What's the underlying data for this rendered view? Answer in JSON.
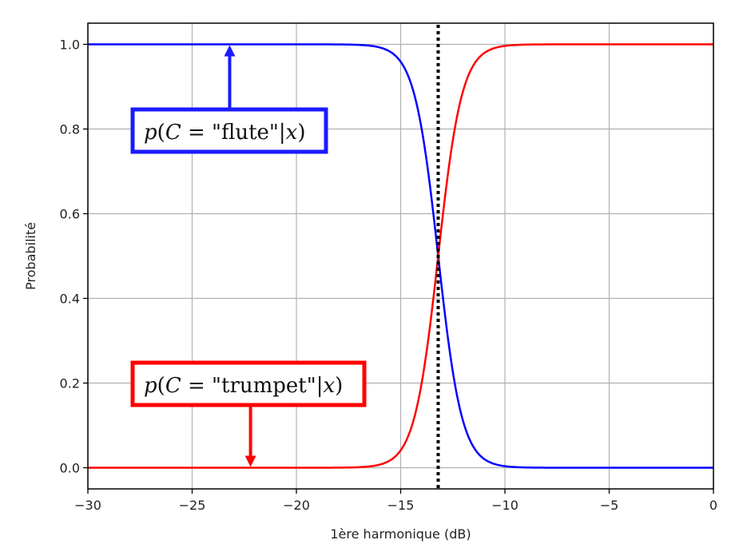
{
  "chart_data": {
    "type": "line",
    "title": "",
    "xlabel": "1ère harmonique (dB)",
    "ylabel": "Probabilité",
    "xlim": [
      -30,
      0
    ],
    "ylim": [
      -0.05,
      1.05
    ],
    "grid": true,
    "x_ticks": [
      -30,
      -25,
      -20,
      -15,
      -10,
      -5,
      0
    ],
    "x_tick_labels": [
      "−30",
      "−25",
      "−20",
      "−15",
      "−10",
      "−5",
      "0"
    ],
    "y_ticks": [
      0.0,
      0.2,
      0.4,
      0.6,
      0.8,
      1.0
    ],
    "y_tick_labels": [
      "0.0",
      "0.2",
      "0.4",
      "0.6",
      "0.8",
      "1.0"
    ],
    "decision_boundary_x": -13.2,
    "sigmoid": {
      "center": -13.2,
      "steepness": 1.75
    },
    "series": [
      {
        "name": "p(C = \"flute\"|x)",
        "color": "#0000ff",
        "shape": "decreasing sigmoid",
        "x": [
          -30,
          -20,
          -17,
          -16,
          -15,
          -14,
          -13.2,
          -12.5,
          -12,
          -11,
          -10,
          -5,
          0
        ],
        "values": [
          1.0,
          1.0,
          0.999,
          0.993,
          0.958,
          0.8,
          0.5,
          0.22,
          0.11,
          0.02,
          0.004,
          0.0,
          0.0
        ]
      },
      {
        "name": "p(C = \"trumpet\"|x)",
        "color": "#ff0000",
        "shape": "increasing sigmoid",
        "x": [
          -30,
          -20,
          -17,
          -16,
          -15,
          -14,
          -13.2,
          -12.5,
          -12,
          -11,
          -10,
          -5,
          0
        ],
        "values": [
          0.0,
          0.0,
          0.001,
          0.007,
          0.042,
          0.2,
          0.5,
          0.78,
          0.89,
          0.98,
          0.996,
          1.0,
          1.0
        ]
      }
    ],
    "annotations": [
      {
        "text_parts": [
          "p",
          "(",
          "C",
          " = \"flute\"|",
          "x",
          ")"
        ],
        "color": "#1a1aff",
        "arrow_target": [
          -23.2,
          1.0
        ]
      },
      {
        "text_parts": [
          "p",
          "(",
          "C",
          " = \"trumpet\"|",
          "x",
          ")"
        ],
        "color": "#ff0000",
        "arrow_target": [
          -22.2,
          0.0
        ]
      }
    ]
  },
  "colors": {
    "blue": "#0000ff",
    "red": "#ff0000",
    "annotation_blue": "#1a1aff",
    "grid": "#b0b0b0",
    "axis": "#000000"
  }
}
